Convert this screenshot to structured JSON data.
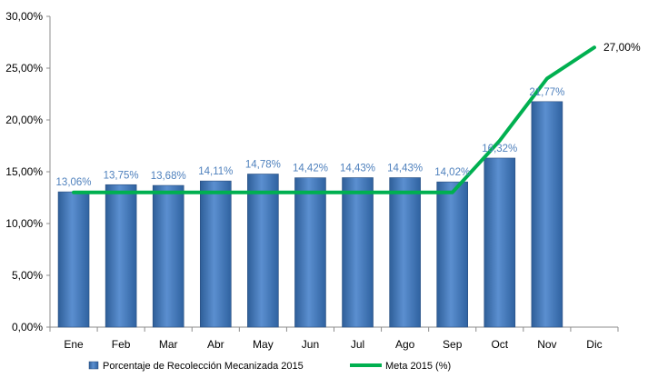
{
  "chart_data": {
    "type": "bar",
    "categories": [
      "Ene",
      "Feb",
      "Mar",
      "Abr",
      "May",
      "Jun",
      "Jul",
      "Ago",
      "Sep",
      "Oct",
      "Nov",
      "Dic"
    ],
    "ylim": [
      0,
      30
    ],
    "y_ticks": [
      0,
      5,
      10,
      15,
      20,
      25,
      30
    ],
    "y_tick_labels": [
      "0,00%",
      "5,00%",
      "10,00%",
      "15,00%",
      "20,00%",
      "25,00%",
      "30,00%"
    ],
    "grid": false,
    "legend_position": "bottom",
    "series": [
      {
        "name": "Porcentaje de Recolección Mecanizada 2015",
        "type": "bar",
        "color": "#4f81bd",
        "values": [
          13.06,
          13.75,
          13.68,
          14.11,
          14.78,
          14.42,
          14.43,
          14.43,
          14.02,
          16.32,
          21.77,
          null
        ],
        "labels": [
          "13,06%",
          "13,75%",
          "13,68%",
          "14,11%",
          "14,78%",
          "14,42%",
          "14,43%",
          "14,43%",
          "14,02%",
          "16,32%",
          "21,77%",
          null
        ]
      },
      {
        "name": "Meta 2015 (%)",
        "type": "line",
        "color": "#00b050",
        "values": [
          13,
          13,
          13,
          13,
          13,
          13,
          13,
          13,
          13,
          18,
          24,
          27
        ],
        "end_label": "27,00%"
      }
    ]
  }
}
